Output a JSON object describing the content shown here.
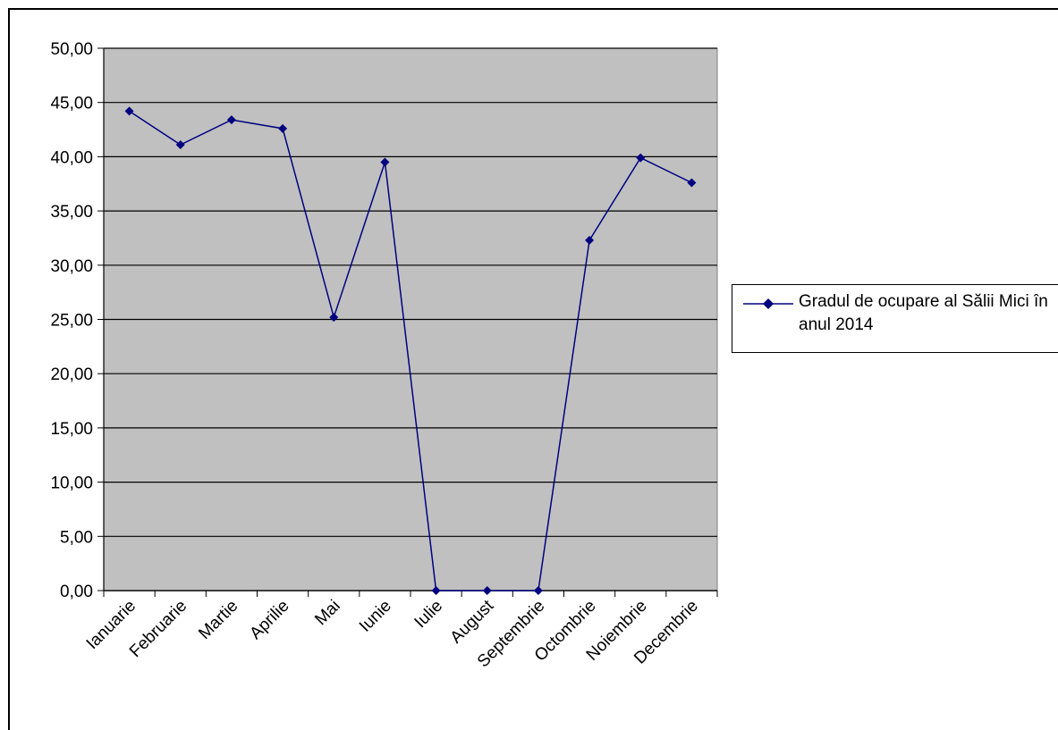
{
  "chart_data": {
    "type": "line",
    "categories": [
      "Ianuarie",
      "Februarie",
      "Martie",
      "Aprilie",
      "Mai",
      "Iunie",
      "Iulie",
      "August",
      "Septembrie",
      "Octombrie",
      "Noiembrie",
      "Decembrie"
    ],
    "series": [
      {
        "name": "Gradul de ocupare al Sălii Mici în anul 2014",
        "values": [
          44.2,
          41.1,
          43.4,
          42.6,
          25.2,
          39.5,
          0.0,
          0.0,
          0.0,
          32.3,
          39.9,
          37.6
        ],
        "color": "#000080",
        "marker": "diamond"
      }
    ],
    "ylim": [
      0,
      50
    ],
    "yticks": [
      "0,00",
      "5,00",
      "10,00",
      "15,00",
      "20,00",
      "25,00",
      "30,00",
      "35,00",
      "40,00",
      "45,00",
      "50,00"
    ],
    "plot_background": "#c0c0c0",
    "grid": true,
    "legend_position": "right"
  }
}
